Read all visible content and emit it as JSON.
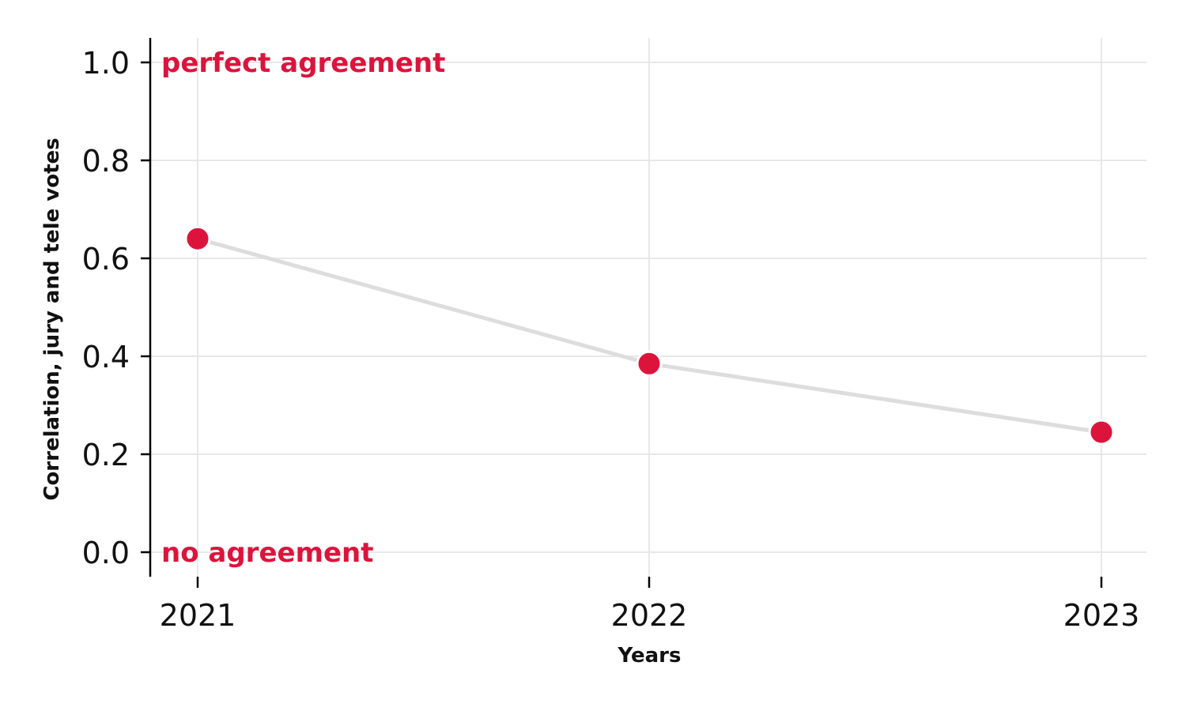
{
  "chart_data": {
    "type": "line",
    "title": "",
    "xlabel": "Years",
    "ylabel": "Correlation, jury and tele votes",
    "categories": [
      "2021",
      "2022",
      "2023"
    ],
    "series": [
      {
        "values": [
          0.64,
          0.385,
          0.245
        ]
      }
    ],
    "ylim": [
      -0.05,
      1.05
    ],
    "yticks": [
      0.0,
      0.2,
      0.4,
      0.6,
      0.8,
      1.0
    ],
    "ytick_labels": [
      "0.0",
      "0.2",
      "0.4",
      "0.6",
      "0.8",
      "1.0"
    ],
    "grid": true,
    "annotations": [
      {
        "text": "perfect agreement",
        "y": 1.0
      },
      {
        "text": "no agreement",
        "y": 0.0
      }
    ],
    "colors": {
      "marker": "#dc143c",
      "line": "#dddddd",
      "annotation": "#dc143c"
    }
  }
}
